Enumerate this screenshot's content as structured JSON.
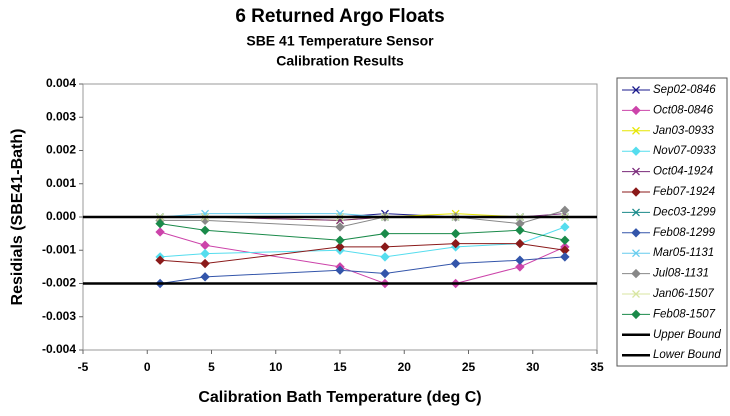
{
  "chart_data": {
    "type": "line",
    "title": "6 Returned Argo Floats",
    "subtitle": [
      "SBE 41 Temperature Sensor",
      "Calibration Results"
    ],
    "x_label": "Calibration Bath Temperature (deg C)",
    "y_label": "Residials (SBE41-Bath)",
    "xlim": [
      -5,
      35
    ],
    "xticks": [
      -5,
      0,
      5,
      10,
      15,
      20,
      25,
      30,
      35
    ],
    "ylim": [
      -0.004,
      0.004
    ],
    "yticks": [
      0.004,
      0.003,
      0.002,
      0.001,
      {
        "value": 0,
        "label": "0.000"
      },
      -0.001,
      -0.002,
      -0.003,
      -0.004
    ],
    "x": [
      1,
      4.5,
      15,
      18.5,
      24,
      29,
      32.5
    ],
    "series": [
      {
        "name": "Sep02-0846",
        "color": "#1a1a8c",
        "marker": "x",
        "values": [
          0,
          0,
          0,
          0.0001,
          0,
          0,
          0
        ]
      },
      {
        "name": "Oct08-0846",
        "color": "#cc44aa",
        "marker": "diamond",
        "values": [
          -0.00045,
          -0.00085,
          -0.0015,
          -0.002,
          -0.002,
          -0.0015,
          -0.0009
        ]
      },
      {
        "name": "Jan03-0933",
        "color": "#e6e600",
        "marker": "x",
        "values": [
          0,
          0,
          -0.0001,
          0,
          0.0001,
          0,
          0
        ]
      },
      {
        "name": "Nov07-0933",
        "color": "#55ddee",
        "marker": "diamond",
        "values": [
          -0.0012,
          -0.0011,
          -0.001,
          -0.0012,
          -0.0009,
          -0.0008,
          -0.0003
        ]
      },
      {
        "name": "Oct04-1924",
        "color": "#7a2a7a",
        "marker": "x",
        "values": [
          0,
          0,
          -0.0001,
          0,
          0,
          0,
          0.0001
        ]
      },
      {
        "name": "Feb07-1924",
        "color": "#8b1a1a",
        "marker": "diamond",
        "values": [
          -0.0013,
          -0.0014,
          -0.0009,
          -0.0009,
          -0.0008,
          -0.0008,
          -0.001
        ]
      },
      {
        "name": "Dec03-1299",
        "color": "#1a8a8a",
        "marker": "x",
        "values": [
          0,
          0,
          0,
          0,
          0,
          0,
          0
        ]
      },
      {
        "name": "Feb08-1299",
        "color": "#3355aa",
        "marker": "diamond",
        "values": [
          -0.002,
          -0.0018,
          -0.0016,
          -0.0017,
          -0.0014,
          -0.0013,
          -0.0012
        ]
      },
      {
        "name": "Mar05-1131",
        "color": "#66ccee",
        "marker": "x",
        "values": [
          0,
          0.0001,
          0.0001,
          0,
          0,
          0,
          0
        ]
      },
      {
        "name": "Jul08-1131",
        "color": "#888888",
        "marker": "diamond",
        "values": [
          -0.0001,
          -0.0001,
          -0.0003,
          0,
          0,
          -0.0002,
          0.0002
        ]
      },
      {
        "name": "Jan06-1507",
        "color": "#d8e6a0",
        "marker": "x",
        "values": [
          0,
          0,
          0,
          0,
          0,
          0,
          0
        ]
      },
      {
        "name": "Feb08-1507",
        "color": "#1a8a4a",
        "marker": "diamond",
        "values": [
          -0.0002,
          -0.0004,
          -0.0007,
          -0.0005,
          -0.0005,
          -0.0004,
          -0.0007
        ]
      },
      {
        "name": "Upper Bound",
        "color": "#000000",
        "marker": "none",
        "x": [
          -5,
          35
        ],
        "values": [
          0,
          0
        ]
      },
      {
        "name": "Lower Bound",
        "color": "#000000",
        "marker": "none",
        "x": [
          -5,
          35
        ],
        "values": [
          -0.002,
          -0.002
        ]
      }
    ]
  }
}
